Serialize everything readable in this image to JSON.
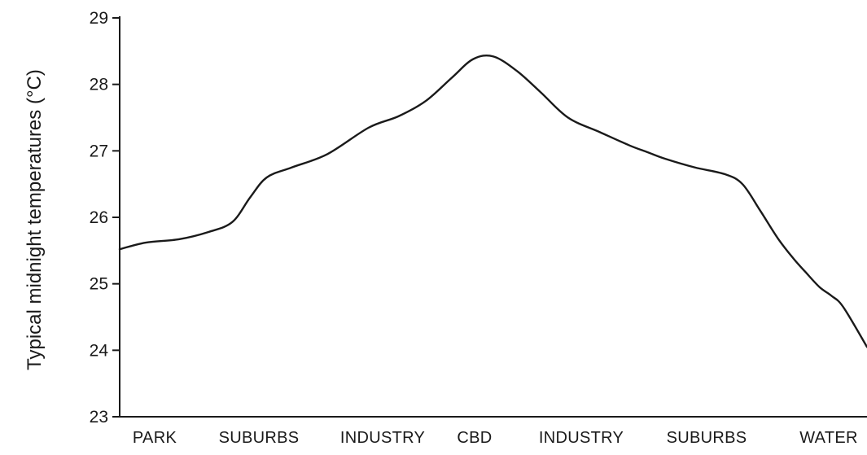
{
  "chart_data": {
    "type": "line",
    "title": "",
    "xlabel": "",
    "ylabel": "Typical midnight temperatures (°C)",
    "ylim": [
      23,
      29
    ],
    "y_ticks": [
      "23",
      "24",
      "25",
      "26",
      "27",
      "28",
      "29"
    ],
    "grid": false,
    "legend": "none",
    "categories": [
      "PARK",
      "SUBURBS",
      "INDUSTRY",
      "CBD",
      "INDUSTRY",
      "SUBURBS",
      "WATER"
    ],
    "line_color": "#1a1a1a",
    "series": [
      {
        "x": [
          0,
          0.22,
          0.5,
          0.75,
          0.95,
          1.1,
          1.24,
          1.45,
          1.75,
          2.1,
          2.35,
          2.58,
          2.8,
          2.98,
          3.15,
          3.35,
          3.55,
          3.78,
          4.05,
          4.3,
          4.45,
          4.6,
          4.85,
          5.1,
          5.25,
          5.4,
          5.55,
          5.68,
          5.78,
          5.9,
          6.0,
          6.1,
          6.3
        ],
        "values": [
          25.52,
          25.62,
          25.67,
          25.78,
          25.93,
          26.3,
          26.6,
          26.75,
          26.95,
          27.35,
          27.52,
          27.75,
          28.1,
          28.38,
          28.42,
          28.2,
          27.88,
          27.5,
          27.28,
          27.08,
          26.98,
          26.88,
          26.75,
          26.65,
          26.5,
          26.1,
          25.68,
          25.38,
          25.18,
          24.95,
          24.82,
          24.65,
          24.05
        ]
      }
    ]
  }
}
